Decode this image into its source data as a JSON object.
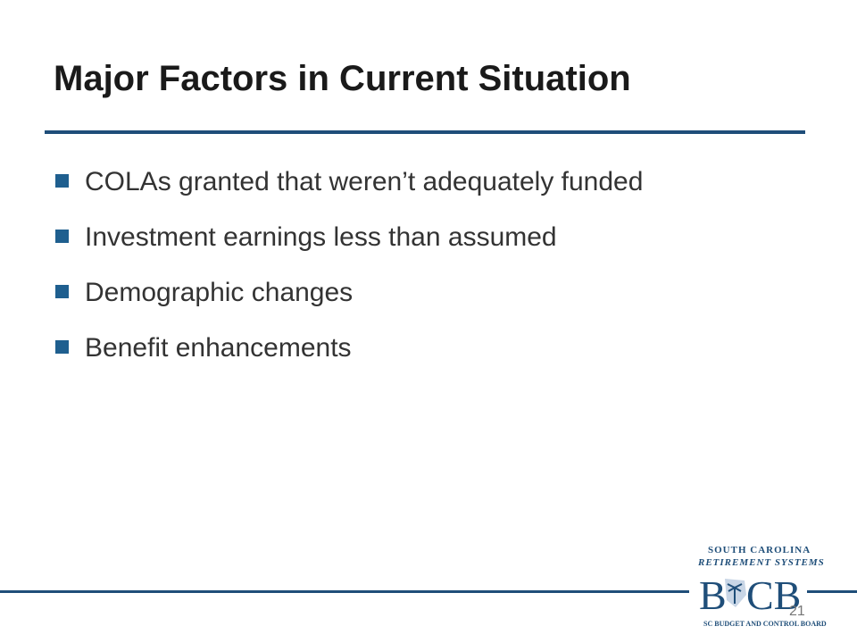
{
  "header": {
    "title": "Major Factors in Current Situation"
  },
  "bullets": [
    "COLAs granted that weren’t adequately funded",
    "Investment earnings less than assumed",
    "Demographic changes",
    "Benefit enhancements"
  ],
  "logo": {
    "top_line": "SOUTH CAROLINA",
    "second_line": "RETIREMENT SYSTEMS",
    "letters_left": "B",
    "letters_right": "CB",
    "bottom_line": "SC BUDGET AND CONTROL BOARD"
  },
  "page_number": "21"
}
